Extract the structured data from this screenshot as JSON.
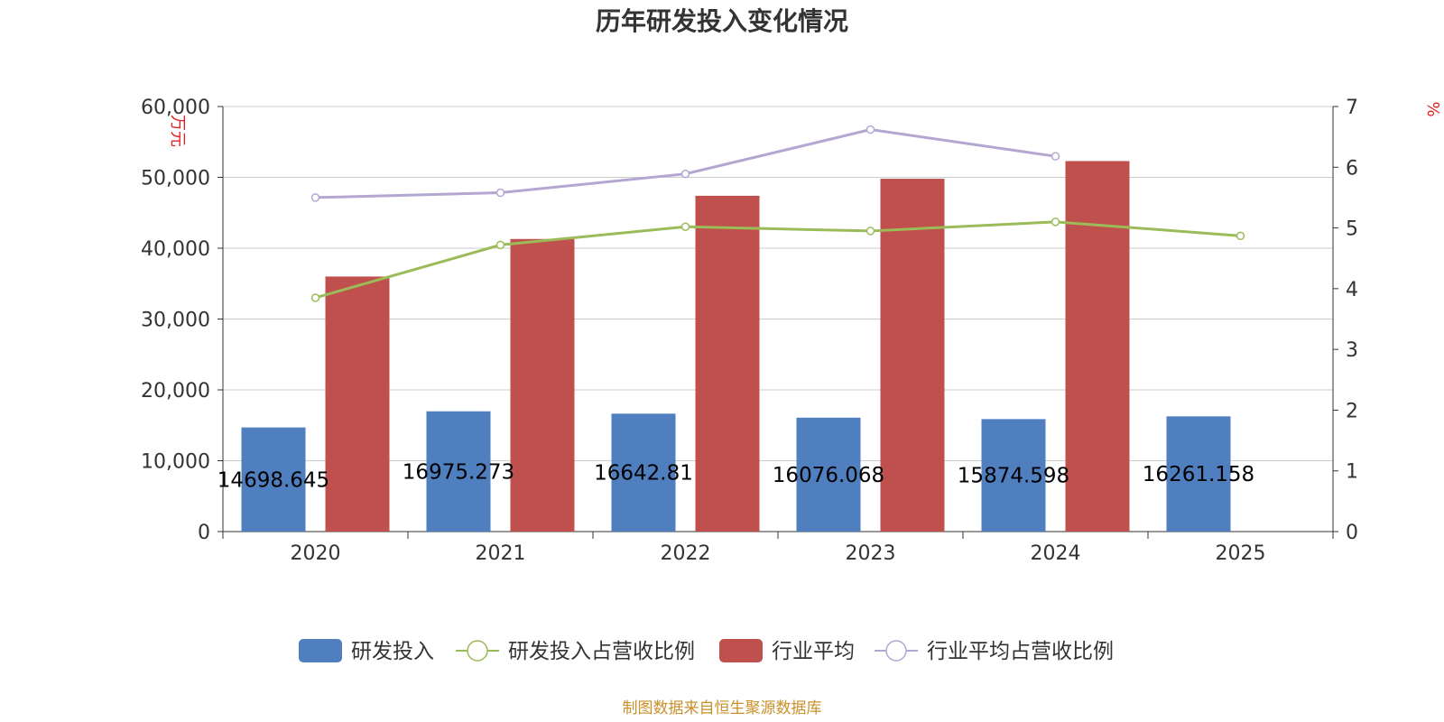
{
  "chart_data": {
    "type": "bar",
    "title": "历年研发投入变化情况",
    "categories": [
      "2020",
      "2021",
      "2022",
      "2023",
      "2024",
      "2025"
    ],
    "y_left": {
      "unit_label": "万元",
      "ylim": [
        0,
        60000
      ],
      "ticks": [
        "0",
        "10,000",
        "20,000",
        "30,000",
        "40,000",
        "50,000",
        "60,000"
      ]
    },
    "y_right": {
      "unit_label": "%",
      "ylim": [
        0,
        7
      ],
      "ticks": [
        "0",
        "1",
        "2",
        "3",
        "4",
        "5",
        "6",
        "7"
      ]
    },
    "series": [
      {
        "name": "研发投入",
        "kind": "bar",
        "axis": "left",
        "color": "#4f7fbf",
        "values": [
          14698.645,
          16975.273,
          16642.81,
          16076.068,
          15874.598,
          16261.158
        ],
        "labels": [
          "14698.645",
          "16975.273",
          "16642.81",
          "16076.068",
          "15874.598",
          "16261.158"
        ]
      },
      {
        "name": "研发投入占营收比例",
        "kind": "line",
        "axis": "right",
        "color": "#9bbb59",
        "values": [
          3.85,
          4.72,
          5.02,
          4.95,
          5.1,
          4.87
        ]
      },
      {
        "name": "行业平均",
        "kind": "bar",
        "axis": "left",
        "color": "#c0504d",
        "values": [
          36000,
          41300,
          47400,
          49800,
          52300,
          null
        ]
      },
      {
        "name": "行业平均占营收比例",
        "kind": "line",
        "axis": "right",
        "color": "#b3a6d1",
        "values": [
          5.5,
          5.58,
          5.89,
          6.62,
          6.18,
          null
        ]
      }
    ],
    "grid": true,
    "legend_position": "bottom"
  },
  "source": "制图数据来自恒生聚源数据库"
}
